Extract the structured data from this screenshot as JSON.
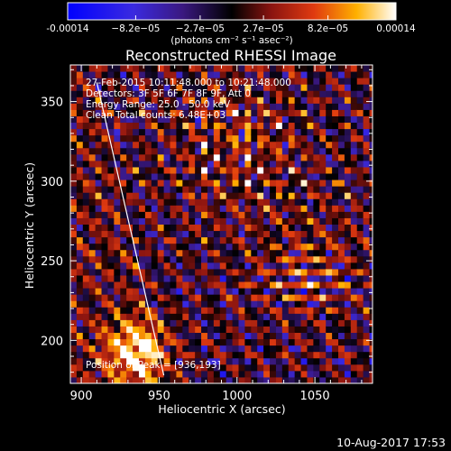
{
  "chart_data": {
    "type": "heatmap",
    "title": "Reconstructed RHESSI Image",
    "xlabel": "Heliocentric X (arcsec)",
    "ylabel": "Heliocentric Y (arcsec)",
    "xlim": [
      893,
      1087
    ],
    "ylim": [
      173,
      373
    ],
    "x_ticks": [
      900,
      950,
      1000,
      1050
    ],
    "y_ticks": [
      200,
      250,
      300,
      350
    ],
    "colorbar": {
      "range": [
        -0.00014,
        0.00014
      ],
      "tick_values": [
        -0.00014,
        -8.2e-05,
        -2.7e-05,
        2.7e-05,
        8.2e-05,
        0.00014
      ],
      "tick_labels": [
        "-0.00014",
        "−8.2e−05",
        "−2.7e−05",
        "2.7e−05",
        "8.2e−05",
        "0.00014"
      ],
      "units_label": "(photons cm⁻² s⁻¹ asec⁻²)"
    },
    "annotations": [
      "27-Feb-2015 10:11:48.000 to 10:21:48.000",
      "Detectors: 3F 5F 6F 7F 8F 9F, Att 0",
      "Energy Range: 25.0 - 50.0 keV",
      "Clean     Total counts: 6.48E+03"
    ],
    "peak_label": "Position of Peak = [936,193]",
    "peak": [
      936,
      193
    ],
    "limb_line": [
      [
        910,
        362
      ],
      [
        953,
        178
      ]
    ],
    "timestamp": "10-Aug-2017 17:53"
  },
  "colors": {
    "background": "#000000",
    "foreground": "#ffffff",
    "colormap_low": "#0000ff",
    "colormap_mid": "#000000",
    "colormap_high": "#ffffff"
  }
}
